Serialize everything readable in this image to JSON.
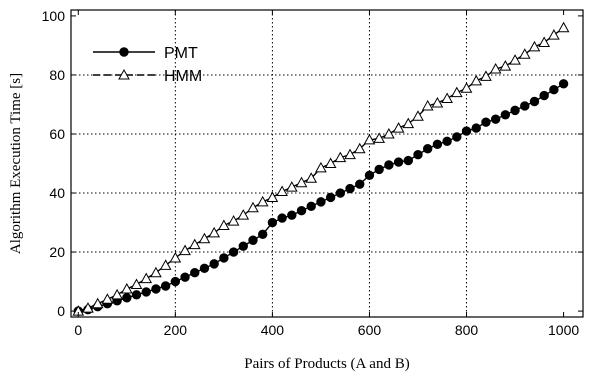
{
  "chart_data": {
    "type": "line",
    "xlabel": "Pairs of Products (A and B)",
    "ylabel": "Algorithm Execution Time [s]",
    "xlim": [
      -15,
      1040
    ],
    "ylim": [
      -2,
      102
    ],
    "xticks": [
      0,
      200,
      400,
      600,
      800,
      1000
    ],
    "yticks": [
      0,
      20,
      40,
      60,
      80,
      100
    ],
    "grid": true,
    "grid_style": "dotted",
    "legend_position": "top-left",
    "series": [
      {
        "name": "PMT",
        "marker": "filled-circle",
        "line_style": "solid",
        "color": "#000000",
        "x": [
          0,
          20,
          40,
          60,
          80,
          100,
          120,
          140,
          160,
          180,
          200,
          220,
          240,
          260,
          280,
          300,
          320,
          340,
          360,
          380,
          400,
          420,
          440,
          460,
          480,
          500,
          520,
          540,
          560,
          580,
          600,
          620,
          640,
          660,
          680,
          700,
          720,
          740,
          760,
          780,
          800,
          820,
          840,
          860,
          880,
          900,
          920,
          940,
          960,
          980,
          1000
        ],
        "values": [
          0,
          0.5,
          1.5,
          2.5,
          3.5,
          4.5,
          5.5,
          6.5,
          7.5,
          8.5,
          10,
          11.5,
          13,
          14.5,
          16,
          18,
          20,
          22,
          24,
          26,
          30,
          31.5,
          32.5,
          34,
          35.5,
          37,
          38.5,
          40,
          41.5,
          43,
          46,
          48,
          49.5,
          50.5,
          51,
          53,
          55,
          56.5,
          57.5,
          59,
          61,
          62,
          64,
          65,
          66.5,
          68,
          69.5,
          71,
          73,
          75,
          77
        ]
      },
      {
        "name": "HMM",
        "marker": "open-triangle",
        "line_style": "dashed",
        "color": "#000000",
        "x": [
          0,
          20,
          40,
          60,
          80,
          100,
          120,
          140,
          160,
          180,
          200,
          220,
          240,
          260,
          280,
          300,
          320,
          340,
          360,
          380,
          400,
          420,
          440,
          460,
          480,
          500,
          520,
          540,
          560,
          580,
          600,
          620,
          640,
          660,
          680,
          700,
          720,
          740,
          760,
          780,
          800,
          820,
          840,
          860,
          880,
          900,
          920,
          940,
          960,
          980,
          1000
        ],
        "values": [
          0,
          1,
          2.5,
          4,
          5.5,
          7.5,
          9,
          11,
          13,
          15.5,
          18,
          20.5,
          22.5,
          24.5,
          26.5,
          29,
          30.5,
          32.5,
          35,
          37,
          38.5,
          40.5,
          42,
          43.5,
          45,
          48.5,
          50,
          52,
          53,
          55,
          58,
          58.5,
          60,
          62,
          63.5,
          66,
          69.5,
          70.5,
          72,
          74,
          75.5,
          78,
          79.5,
          82,
          83,
          85,
          87,
          89.5,
          91,
          93.5,
          96
        ]
      }
    ]
  }
}
